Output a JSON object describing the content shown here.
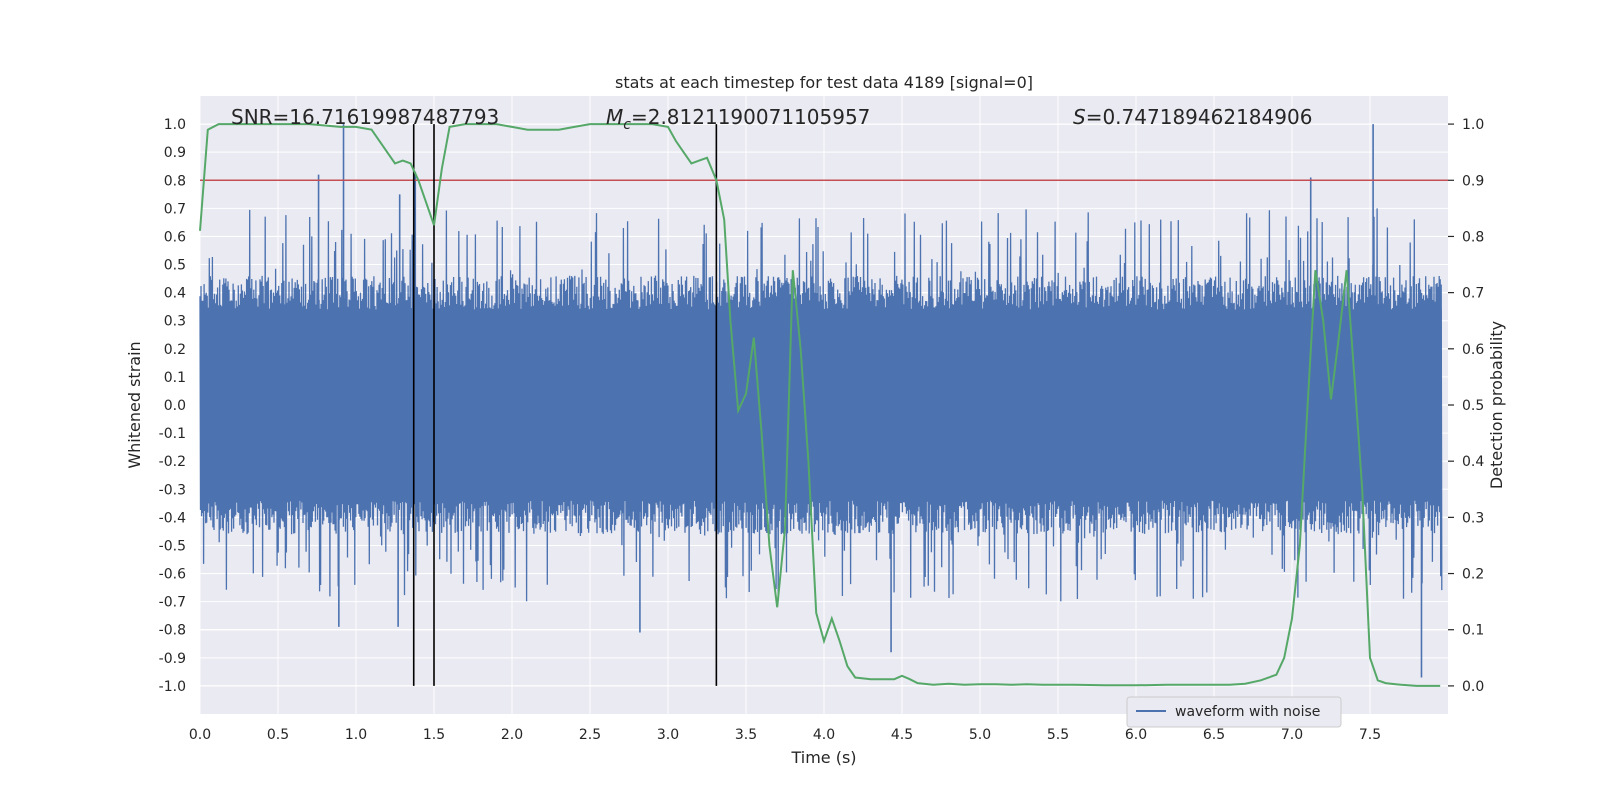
{
  "chart_data": {
    "type": "line",
    "title": "stats at each timestep for test data 4189 [signal=0]",
    "xlabel": "Time (s)",
    "ylabel": "Whitened strain",
    "y2label": "Detection probability",
    "xlim": [
      0.0,
      8.0
    ],
    "ylim": [
      -1.1,
      1.1
    ],
    "y2lim": [
      -0.05,
      1.05
    ],
    "xticks": [
      "0.0",
      "0.5",
      "1.0",
      "1.5",
      "2.0",
      "2.5",
      "3.0",
      "3.5",
      "4.0",
      "4.5",
      "5.0",
      "5.5",
      "6.0",
      "6.5",
      "7.0",
      "7.5"
    ],
    "yticks": [
      "-1.0",
      "-0.9",
      "-0.8",
      "-0.7",
      "-0.6",
      "-0.5",
      "-0.4",
      "-0.3",
      "-0.2",
      "-0.1",
      "0.0",
      "0.1",
      "0.2",
      "0.3",
      "0.4",
      "0.5",
      "0.6",
      "0.7",
      "0.8",
      "0.9",
      "1.0"
    ],
    "y2ticks": [
      "0.0",
      "0.1",
      "0.2",
      "0.3",
      "0.4",
      "0.5",
      "0.6",
      "0.7",
      "0.8",
      "0.9",
      "1.0"
    ],
    "grid": true,
    "annotations": {
      "snr": "SNR=16.71619987487793",
      "mc_symbol": "M",
      "mc_sub": "c",
      "mc_value": "=2.8121190071105957",
      "s_symbol": "S",
      "s_value": "=0.747189462184906"
    },
    "threshold": {
      "y2": 0.9,
      "color": "#c44e52"
    },
    "vertical_lines": [
      1.37,
      1.5,
      3.31
    ],
    "legend": {
      "position": "lower-right",
      "entries": [
        "waveform with noise"
      ]
    },
    "colors": {
      "waveform": "#4c72b0",
      "probability": "#55a868",
      "threshold": "#c44e52",
      "background": "#eaeaf2"
    },
    "series": [
      {
        "name": "waveform with noise",
        "axis": "left",
        "peaks": [
          {
            "x": 0.76,
            "y": 0.82
          },
          {
            "x": 0.92,
            "y": 1.0
          },
          {
            "x": 1.28,
            "y": 0.75
          },
          {
            "x": 1.38,
            "y": 0.83
          },
          {
            "x": 7.12,
            "y": 0.81
          },
          {
            "x": 7.52,
            "y": 1.0
          },
          {
            "x": 0.89,
            "y": -0.79
          },
          {
            "x": 1.27,
            "y": -0.79
          },
          {
            "x": 2.82,
            "y": -0.81
          },
          {
            "x": 4.43,
            "y": -0.88
          },
          {
            "x": 7.83,
            "y": -0.97
          }
        ]
      },
      {
        "name": "detection probability",
        "axis": "right",
        "x": [
          0.0,
          0.05,
          0.12,
          0.2,
          0.3,
          0.5,
          0.7,
          0.9,
          1.0,
          1.1,
          1.15,
          1.25,
          1.3,
          1.35,
          1.4,
          1.45,
          1.5,
          1.55,
          1.6,
          1.7,
          1.8,
          1.9,
          2.0,
          2.1,
          2.2,
          2.3,
          2.4,
          2.5,
          2.6,
          2.7,
          2.8,
          2.9,
          3.0,
          3.05,
          3.1,
          3.15,
          3.2,
          3.25,
          3.31,
          3.36,
          3.4,
          3.45,
          3.5,
          3.55,
          3.6,
          3.65,
          3.7,
          3.75,
          3.8,
          3.85,
          3.9,
          3.95,
          4.0,
          4.05,
          4.1,
          4.15,
          4.2,
          4.3,
          4.45,
          4.5,
          4.55,
          4.6,
          4.7,
          4.8,
          4.9,
          5.0,
          5.1,
          5.2,
          5.3,
          5.4,
          5.5,
          5.6,
          5.8,
          6.0,
          6.2,
          6.4,
          6.6,
          6.7,
          6.8,
          6.9,
          6.95,
          7.0,
          7.05,
          7.1,
          7.15,
          7.2,
          7.25,
          7.3,
          7.35,
          7.4,
          7.45,
          7.5,
          7.55,
          7.6,
          7.7,
          7.8,
          7.95
        ],
        "y": [
          0.81,
          0.99,
          1.0,
          1.0,
          1.0,
          1.0,
          1.0,
          0.995,
          0.995,
          0.99,
          0.97,
          0.93,
          0.935,
          0.93,
          0.9,
          0.86,
          0.82,
          0.92,
          0.995,
          1.0,
          1.0,
          1.0,
          0.995,
          0.99,
          0.99,
          0.99,
          0.995,
          1.0,
          1.0,
          1.0,
          1.0,
          1.0,
          0.995,
          0.97,
          0.95,
          0.93,
          0.935,
          0.94,
          0.9,
          0.83,
          0.65,
          0.49,
          0.52,
          0.62,
          0.45,
          0.25,
          0.14,
          0.28,
          0.74,
          0.6,
          0.4,
          0.13,
          0.08,
          0.12,
          0.08,
          0.035,
          0.015,
          0.012,
          0.012,
          0.018,
          0.012,
          0.005,
          0.002,
          0.004,
          0.002,
          0.003,
          0.003,
          0.002,
          0.003,
          0.002,
          0.002,
          0.002,
          0.001,
          0.001,
          0.002,
          0.002,
          0.002,
          0.004,
          0.01,
          0.02,
          0.05,
          0.12,
          0.25,
          0.5,
          0.74,
          0.65,
          0.51,
          0.62,
          0.74,
          0.55,
          0.35,
          0.05,
          0.01,
          0.005,
          0.002,
          0.0,
          0.0
        ]
      }
    ]
  }
}
